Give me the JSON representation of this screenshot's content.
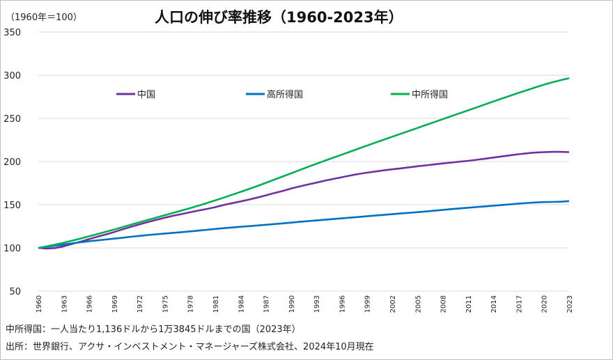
{
  "header": {
    "unit": "（1960年＝100）",
    "title": "人口の伸び率推移（1960-2023年）"
  },
  "footer": {
    "note": "中所得国：一人当たり1,136ドルから1万3845ドルまでの国（2023年）",
    "source": "出所：世界銀行、アクサ・インベストメント・マネージャーズ株式会社、2024年10月現在"
  },
  "chart_data": {
    "type": "line",
    "x": [
      1960,
      1961,
      1962,
      1963,
      1964,
      1965,
      1966,
      1967,
      1968,
      1969,
      1970,
      1971,
      1972,
      1973,
      1974,
      1975,
      1976,
      1977,
      1978,
      1979,
      1980,
      1981,
      1982,
      1983,
      1984,
      1985,
      1986,
      1987,
      1988,
      1989,
      1990,
      1991,
      1992,
      1993,
      1994,
      1995,
      1996,
      1997,
      1998,
      1999,
      2000,
      2001,
      2002,
      2003,
      2004,
      2005,
      2006,
      2007,
      2008,
      2009,
      2010,
      2011,
      2012,
      2013,
      2014,
      2015,
      2016,
      2017,
      2018,
      2019,
      2020,
      2021,
      2022,
      2023
    ],
    "x_tick_labels": [
      "1960",
      "1963",
      "1966",
      "1969",
      "1972",
      "1975",
      "1978",
      "1981",
      "1984",
      "1987",
      "1990",
      "1993",
      "1996",
      "1999",
      "2002",
      "2005",
      "2008",
      "2011",
      "2014",
      "2017",
      "2020",
      "2023"
    ],
    "ylim": [
      50,
      350
    ],
    "y_ticks": [
      50,
      100,
      150,
      200,
      250,
      300,
      350
    ],
    "grid": true,
    "legend_position": "top",
    "series": [
      {
        "name": "中国",
        "color": "#7030a0",
        "values": [
          100,
          99.2,
          99.8,
          101.8,
          104.5,
          107.2,
          110.1,
          112.9,
          115.6,
          118.4,
          121.5,
          124.4,
          127.2,
          129.9,
          132.4,
          134.9,
          137.2,
          139.1,
          141.2,
          143.2,
          145.1,
          147.2,
          149.7,
          151.8,
          153.8,
          156.0,
          158.3,
          160.8,
          163.5,
          166.0,
          168.7,
          171.1,
          173.4,
          175.6,
          177.8,
          179.8,
          181.8,
          183.8,
          185.6,
          187.1,
          188.5,
          189.8,
          191.0,
          192.1,
          193.3,
          194.5,
          195.6,
          196.7,
          197.8,
          198.8,
          199.8,
          200.8,
          202.0,
          203.3,
          204.6,
          205.9,
          207.2,
          208.5,
          209.5,
          210.4,
          210.9,
          211.2,
          211.2,
          210.9
        ]
      },
      {
        "name": "高所得国",
        "color": "#0070c0",
        "values": [
          100,
          101.3,
          102.6,
          103.9,
          105.2,
          106.5,
          107.7,
          108.7,
          109.7,
          110.7,
          111.8,
          112.9,
          113.9,
          114.8,
          115.7,
          116.6,
          117.4,
          118.2,
          119.1,
          120.0,
          121.0,
          121.9,
          122.8,
          123.6,
          124.4,
          125.2,
          126.0,
          126.8,
          127.6,
          128.4,
          129.3,
          130.2,
          131.0,
          131.8,
          132.6,
          133.4,
          134.2,
          135.0,
          135.8,
          136.6,
          137.4,
          138.2,
          139.0,
          139.8,
          140.6,
          141.4,
          142.2,
          143.1,
          144.0,
          144.9,
          145.7,
          146.5,
          147.3,
          148.1,
          148.9,
          149.7,
          150.5,
          151.3,
          152.0,
          152.6,
          153.1,
          153.2,
          153.5,
          154.2
        ]
      },
      {
        "name": "中所得国",
        "color": "#00b050",
        "values": [
          100,
          101.8,
          103.8,
          106.0,
          108.3,
          110.8,
          113.4,
          116.0,
          118.6,
          121.3,
          124.1,
          126.9,
          129.7,
          132.4,
          135.1,
          137.8,
          140.5,
          143.2,
          146.0,
          148.9,
          151.9,
          155.0,
          158.2,
          161.5,
          164.8,
          168.2,
          171.7,
          175.3,
          179.0,
          182.7,
          186.4,
          190.1,
          193.8,
          197.4,
          200.9,
          204.4,
          207.9,
          211.4,
          214.9,
          218.4,
          221.9,
          225.3,
          228.7,
          232.1,
          235.5,
          238.9,
          242.3,
          245.7,
          249.1,
          252.5,
          255.9,
          259.3,
          262.7,
          266.1,
          269.5,
          272.9,
          276.2,
          279.5,
          282.7,
          285.9,
          289.0,
          291.8,
          294.3,
          296.5
        ]
      }
    ]
  }
}
